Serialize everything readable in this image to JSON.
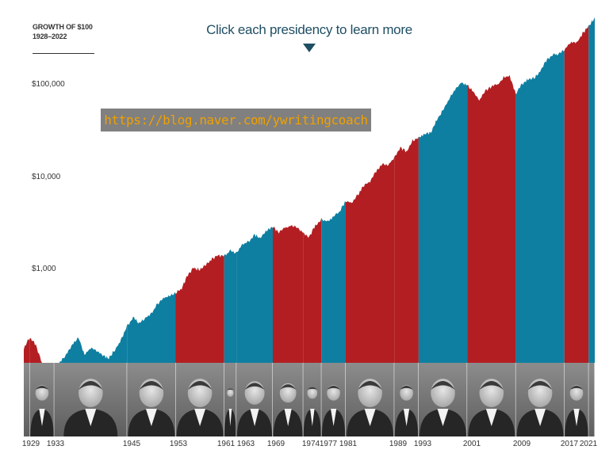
{
  "header": {
    "title_line1": "GROWTH OF $100",
    "title_line2": "1928–2022",
    "cta": "Click each presidency to learn more"
  },
  "watermark": "https://blog.naver.com/ywritingcoach",
  "icons": {
    "cta_arrow": "triangle-down-icon",
    "portrait": "president-portrait-icon"
  },
  "colors": {
    "democrat": "#0e7fa1",
    "republican": "#b31e22",
    "cta": "#1f4e63",
    "portrait_strip": "#7a7a7a",
    "watermark_bg": "#808080",
    "watermark_text": "#f0a000"
  },
  "chart_data": {
    "type": "area",
    "title": "GROWTH OF $100, 1928–2022",
    "xlabel": "",
    "ylabel": "",
    "scale": "log",
    "ylim": [
      100,
      600000
    ],
    "x_range": [
      1928,
      2022
    ],
    "y_tick_labels": [
      {
        "label": "$100,000",
        "value": 100000
      },
      {
        "label": "$10,000",
        "value": 10000
      },
      {
        "label": "$1,000",
        "value": 1000
      }
    ],
    "x_tick_labels": [
      "1929",
      "1933",
      "1945",
      "1953",
      "1961",
      "1963",
      "1969",
      "1974",
      "1977",
      "1981",
      "1989",
      "1993",
      "2001",
      "2009",
      "2017",
      "2021"
    ],
    "series": [
      {
        "name": "Growth of $100",
        "points": [
          [
            1928,
            140
          ],
          [
            1929,
            185
          ],
          [
            1930,
            150
          ],
          [
            1931,
            95
          ],
          [
            1932,
            70
          ],
          [
            1933,
            85
          ],
          [
            1934,
            100
          ],
          [
            1935,
            118
          ],
          [
            1936,
            150
          ],
          [
            1937,
            185
          ],
          [
            1938,
            120
          ],
          [
            1939,
            140
          ],
          [
            1940,
            130
          ],
          [
            1941,
            115
          ],
          [
            1942,
            108
          ],
          [
            1943,
            135
          ],
          [
            1944,
            170
          ],
          [
            1945,
            240
          ],
          [
            1946,
            300
          ],
          [
            1947,
            260
          ],
          [
            1948,
            300
          ],
          [
            1949,
            330
          ],
          [
            1950,
            420
          ],
          [
            1951,
            480
          ],
          [
            1952,
            520
          ],
          [
            1953,
            560
          ],
          [
            1954,
            620
          ],
          [
            1955,
            870
          ],
          [
            1956,
            1030
          ],
          [
            1957,
            1000
          ],
          [
            1958,
            1130
          ],
          [
            1959,
            1300
          ],
          [
            1960,
            1400
          ],
          [
            1961,
            1380
          ],
          [
            1962,
            1620
          ],
          [
            1963,
            1500
          ],
          [
            1964,
            1840
          ],
          [
            1965,
            2000
          ],
          [
            1966,
            2350
          ],
          [
            1967,
            2200
          ],
          [
            1968,
            2650
          ],
          [
            1969,
            2850
          ],
          [
            1970,
            2500
          ],
          [
            1971,
            2800
          ],
          [
            1972,
            3000
          ],
          [
            1973,
            2900
          ],
          [
            1974,
            2450
          ],
          [
            1975,
            2200
          ],
          [
            1976,
            3000
          ],
          [
            1977,
            3500
          ],
          [
            1978,
            3300
          ],
          [
            1979,
            3700
          ],
          [
            1980,
            4200
          ],
          [
            1981,
            5500
          ],
          [
            1982,
            5300
          ],
          [
            1983,
            6500
          ],
          [
            1984,
            8000
          ],
          [
            1985,
            9000
          ],
          [
            1986,
            11500
          ],
          [
            1987,
            14000
          ],
          [
            1988,
            13500
          ],
          [
            1989,
            16000
          ],
          [
            1990,
            20500
          ],
          [
            1991,
            19000
          ],
          [
            1992,
            25000
          ],
          [
            1993,
            27000
          ],
          [
            1994,
            29000
          ],
          [
            1995,
            30000
          ],
          [
            1996,
            42000
          ],
          [
            1997,
            53000
          ],
          [
            1998,
            70000
          ],
          [
            1999,
            88000
          ],
          [
            2000,
            105000
          ],
          [
            2001,
            100000
          ],
          [
            2002,
            85000
          ],
          [
            2003,
            68000
          ],
          [
            2004,
            86000
          ],
          [
            2005,
            95000
          ],
          [
            2006,
            100000
          ],
          [
            2007,
            120000
          ],
          [
            2008,
            125000
          ],
          [
            2009,
            79000
          ],
          [
            2010,
            101000
          ],
          [
            2011,
            115000
          ],
          [
            2012,
            118000
          ],
          [
            2013,
            138000
          ],
          [
            2014,
            180000
          ],
          [
            2015,
            210000
          ],
          [
            2016,
            215000
          ],
          [
            2017,
            240000
          ],
          [
            2018,
            290000
          ],
          [
            2019,
            280000
          ],
          [
            2020,
            360000
          ],
          [
            2021,
            430000
          ],
          [
            2022,
            540000
          ]
        ]
      }
    ],
    "presidencies": [
      {
        "start": 1928,
        "end": 1929,
        "party": "republican"
      },
      {
        "start": 1929,
        "end": 1933,
        "party": "republican"
      },
      {
        "start": 1933,
        "end": 1945,
        "party": "democrat"
      },
      {
        "start": 1945,
        "end": 1953,
        "party": "democrat"
      },
      {
        "start": 1953,
        "end": 1961,
        "party": "republican"
      },
      {
        "start": 1961,
        "end": 1963,
        "party": "democrat"
      },
      {
        "start": 1963,
        "end": 1969,
        "party": "democrat"
      },
      {
        "start": 1969,
        "end": 1974,
        "party": "republican"
      },
      {
        "start": 1974,
        "end": 1977,
        "party": "republican"
      },
      {
        "start": 1977,
        "end": 1981,
        "party": "democrat"
      },
      {
        "start": 1981,
        "end": 1989,
        "party": "republican"
      },
      {
        "start": 1989,
        "end": 1993,
        "party": "republican"
      },
      {
        "start": 1993,
        "end": 2001,
        "party": "democrat"
      },
      {
        "start": 2001,
        "end": 2009,
        "party": "republican"
      },
      {
        "start": 2009,
        "end": 2017,
        "party": "democrat"
      },
      {
        "start": 2017,
        "end": 2021,
        "party": "republican"
      },
      {
        "start": 2021,
        "end": 2022,
        "party": "democrat"
      }
    ]
  }
}
